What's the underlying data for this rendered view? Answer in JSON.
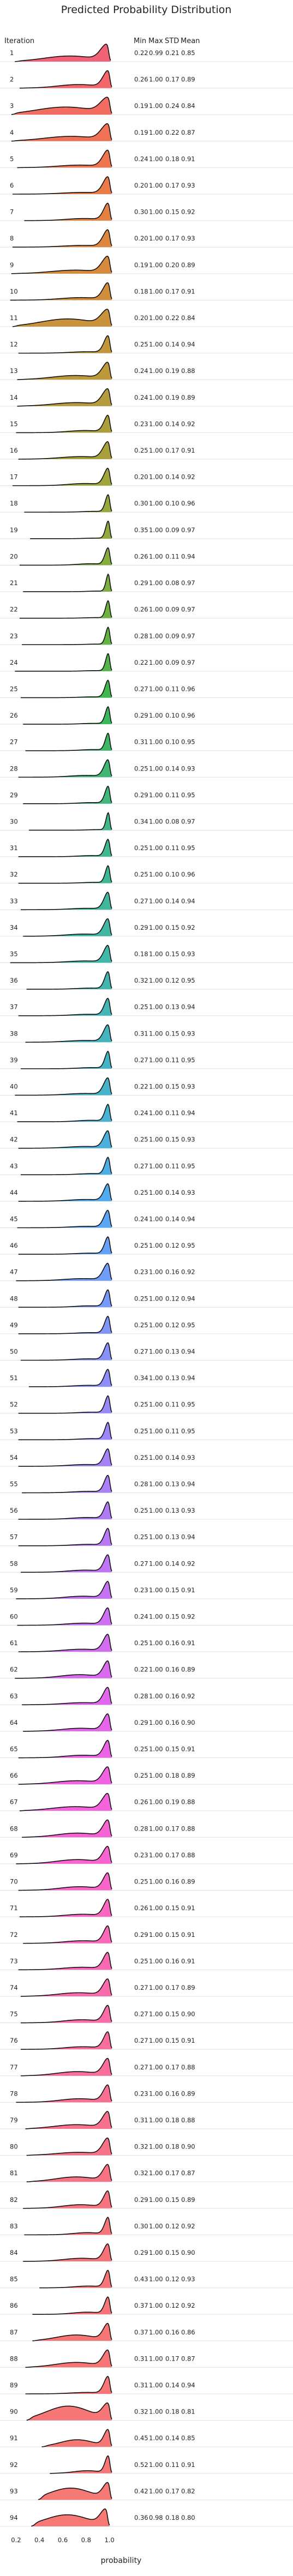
{
  "chart_data": {
    "type": "ridgeline",
    "title": "Predicted Probability Distribution",
    "row_header": "Iteration",
    "stat_headers": [
      "Min",
      "Max",
      "STD",
      "Mean"
    ],
    "xlabel": "probability",
    "x_ticks": [
      "0.2",
      "0.4",
      "0.6",
      "0.8",
      "1.0"
    ],
    "xlim": [
      0.1,
      1.1
    ],
    "rows": [
      {
        "iteration": "1",
        "min": "0.22",
        "max": "0.99",
        "std": "0.21",
        "mean": "0.85",
        "color": "#f15a6f"
      },
      {
        "iteration": "2",
        "min": "0.26",
        "max": "1.00",
        "std": "0.17",
        "mean": "0.89",
        "color": "#f25f63"
      },
      {
        "iteration": "3",
        "min": "0.19",
        "max": "1.00",
        "std": "0.24",
        "mean": "0.84",
        "color": "#f26458"
      },
      {
        "iteration": "4",
        "min": "0.19",
        "max": "1.00",
        "std": "0.22",
        "mean": "0.87",
        "color": "#f0694e"
      },
      {
        "iteration": "5",
        "min": "0.24",
        "max": "1.00",
        "std": "0.18",
        "mean": "0.91",
        "color": "#ed6e45"
      },
      {
        "iteration": "6",
        "min": "0.20",
        "max": "1.00",
        "std": "0.17",
        "mean": "0.93",
        "color": "#e8743e"
      },
      {
        "iteration": "7",
        "min": "0.30",
        "max": "1.00",
        "std": "0.15",
        "mean": "0.92",
        "color": "#e27a38"
      },
      {
        "iteration": "8",
        "min": "0.20",
        "max": "1.00",
        "std": "0.17",
        "mean": "0.93",
        "color": "#db7f35"
      },
      {
        "iteration": "9",
        "min": "0.19",
        "max": "1.00",
        "std": "0.20",
        "mean": "0.89",
        "color": "#d48433"
      },
      {
        "iteration": "10",
        "min": "0.18",
        "max": "1.00",
        "std": "0.17",
        "mean": "0.91",
        "color": "#cd8832"
      },
      {
        "iteration": "11",
        "min": "0.20",
        "max": "1.00",
        "std": "0.22",
        "mean": "0.84",
        "color": "#c68c31"
      },
      {
        "iteration": "12",
        "min": "0.25",
        "max": "1.00",
        "std": "0.14",
        "mean": "0.94",
        "color": "#bf9030"
      },
      {
        "iteration": "13",
        "min": "0.24",
        "max": "1.00",
        "std": "0.19",
        "mean": "0.88",
        "color": "#b89330"
      },
      {
        "iteration": "14",
        "min": "0.24",
        "max": "1.00",
        "std": "0.19",
        "mean": "0.89",
        "color": "#b19630"
      },
      {
        "iteration": "15",
        "min": "0.23",
        "max": "1.00",
        "std": "0.14",
        "mean": "0.92",
        "color": "#aa9930"
      },
      {
        "iteration": "16",
        "min": "0.25",
        "max": "1.00",
        "std": "0.17",
        "mean": "0.91",
        "color": "#a39c30"
      },
      {
        "iteration": "17",
        "min": "0.20",
        "max": "1.00",
        "std": "0.14",
        "mean": "0.92",
        "color": "#9b9f31"
      },
      {
        "iteration": "18",
        "min": "0.30",
        "max": "1.00",
        "std": "0.10",
        "mean": "0.96",
        "color": "#93a232"
      },
      {
        "iteration": "19",
        "min": "0.35",
        "max": "1.00",
        "std": "0.09",
        "mean": "0.97",
        "color": "#8aa533"
      },
      {
        "iteration": "20",
        "min": "0.26",
        "max": "1.00",
        "std": "0.11",
        "mean": "0.94",
        "color": "#80a834"
      },
      {
        "iteration": "21",
        "min": "0.29",
        "max": "1.00",
        "std": "0.08",
        "mean": "0.97",
        "color": "#75aa36"
      },
      {
        "iteration": "22",
        "min": "0.26",
        "max": "1.00",
        "std": "0.09",
        "mean": "0.97",
        "color": "#69ad38"
      },
      {
        "iteration": "23",
        "min": "0.28",
        "max": "1.00",
        "std": "0.09",
        "mean": "0.97",
        "color": "#5baf3b"
      },
      {
        "iteration": "24",
        "min": "0.22",
        "max": "1.00",
        "std": "0.09",
        "mean": "0.97",
        "color": "#4bb13f"
      },
      {
        "iteration": "25",
        "min": "0.27",
        "max": "1.00",
        "std": "0.11",
        "mean": "0.96",
        "color": "#38b245"
      },
      {
        "iteration": "26",
        "min": "0.29",
        "max": "1.00",
        "std": "0.10",
        "mean": "0.96",
        "color": "#33b353"
      },
      {
        "iteration": "27",
        "min": "0.31",
        "max": "1.00",
        "std": "0.10",
        "mean": "0.95",
        "color": "#34b35f"
      },
      {
        "iteration": "28",
        "min": "0.25",
        "max": "1.00",
        "std": "0.14",
        "mean": "0.93",
        "color": "#35b36a"
      },
      {
        "iteration": "29",
        "min": "0.29",
        "max": "1.00",
        "std": "0.11",
        "mean": "0.95",
        "color": "#36b374"
      },
      {
        "iteration": "30",
        "min": "0.34",
        "max": "1.00",
        "std": "0.08",
        "mean": "0.97",
        "color": "#36b37d"
      },
      {
        "iteration": "31",
        "min": "0.25",
        "max": "1.00",
        "std": "0.11",
        "mean": "0.95",
        "color": "#36b386"
      },
      {
        "iteration": "32",
        "min": "0.25",
        "max": "1.00",
        "std": "0.10",
        "mean": "0.96",
        "color": "#36b38e"
      },
      {
        "iteration": "33",
        "min": "0.27",
        "max": "1.00",
        "std": "0.14",
        "mean": "0.94",
        "color": "#36b395"
      },
      {
        "iteration": "34",
        "min": "0.29",
        "max": "1.00",
        "std": "0.15",
        "mean": "0.92",
        "color": "#37b39c"
      },
      {
        "iteration": "35",
        "min": "0.18",
        "max": "1.00",
        "std": "0.15",
        "mean": "0.93",
        "color": "#37b3a3"
      },
      {
        "iteration": "36",
        "min": "0.32",
        "max": "1.00",
        "std": "0.12",
        "mean": "0.95",
        "color": "#38b2aa"
      },
      {
        "iteration": "37",
        "min": "0.25",
        "max": "1.00",
        "std": "0.13",
        "mean": "0.94",
        "color": "#39b2b1"
      },
      {
        "iteration": "38",
        "min": "0.31",
        "max": "1.00",
        "std": "0.15",
        "mean": "0.93",
        "color": "#3ab1b8"
      },
      {
        "iteration": "39",
        "min": "0.27",
        "max": "1.00",
        "std": "0.11",
        "mean": "0.95",
        "color": "#3bb0bf"
      },
      {
        "iteration": "40",
        "min": "0.22",
        "max": "1.00",
        "std": "0.15",
        "mean": "0.93",
        "color": "#3dafc7"
      },
      {
        "iteration": "41",
        "min": "0.24",
        "max": "1.00",
        "std": "0.11",
        "mean": "0.94",
        "color": "#3faed0"
      },
      {
        "iteration": "42",
        "min": "0.25",
        "max": "1.00",
        "std": "0.15",
        "mean": "0.93",
        "color": "#42acd9"
      },
      {
        "iteration": "43",
        "min": "0.27",
        "max": "1.00",
        "std": "0.11",
        "mean": "0.95",
        "color": "#45a9e3"
      },
      {
        "iteration": "44",
        "min": "0.25",
        "max": "1.00",
        "std": "0.14",
        "mean": "0.93",
        "color": "#4aa6ee"
      },
      {
        "iteration": "45",
        "min": "0.24",
        "max": "1.00",
        "std": "0.14",
        "mean": "0.94",
        "color": "#52a2f6"
      },
      {
        "iteration": "46",
        "min": "0.25",
        "max": "1.00",
        "std": "0.12",
        "mean": "0.95",
        "color": "#5d9df7"
      },
      {
        "iteration": "47",
        "min": "0.23",
        "max": "1.00",
        "std": "0.16",
        "mean": "0.92",
        "color": "#6798f7"
      },
      {
        "iteration": "48",
        "min": "0.25",
        "max": "1.00",
        "std": "0.12",
        "mean": "0.94",
        "color": "#7093f7"
      },
      {
        "iteration": "49",
        "min": "0.25",
        "max": "1.00",
        "std": "0.12",
        "mean": "0.95",
        "color": "#798ff7"
      },
      {
        "iteration": "50",
        "min": "0.27",
        "max": "1.00",
        "std": "0.13",
        "mean": "0.94",
        "color": "#818bf7"
      },
      {
        "iteration": "51",
        "min": "0.34",
        "max": "1.00",
        "std": "0.13",
        "mean": "0.94",
        "color": "#8987f7"
      },
      {
        "iteration": "52",
        "min": "0.25",
        "max": "1.00",
        "std": "0.11",
        "mean": "0.95",
        "color": "#9183f7"
      },
      {
        "iteration": "53",
        "min": "0.25",
        "max": "1.00",
        "std": "0.11",
        "mean": "0.95",
        "color": "#987ff7"
      },
      {
        "iteration": "54",
        "min": "0.25",
        "max": "1.00",
        "std": "0.14",
        "mean": "0.93",
        "color": "#a07bf6"
      },
      {
        "iteration": "55",
        "min": "0.28",
        "max": "1.00",
        "std": "0.13",
        "mean": "0.94",
        "color": "#a778f6"
      },
      {
        "iteration": "56",
        "min": "0.25",
        "max": "1.00",
        "std": "0.13",
        "mean": "0.93",
        "color": "#ae74f5"
      },
      {
        "iteration": "57",
        "min": "0.25",
        "max": "1.00",
        "std": "0.13",
        "mean": "0.94",
        "color": "#b571f4"
      },
      {
        "iteration": "58",
        "min": "0.27",
        "max": "1.00",
        "std": "0.14",
        "mean": "0.92",
        "color": "#bc6ef3"
      },
      {
        "iteration": "59",
        "min": "0.23",
        "max": "1.00",
        "std": "0.15",
        "mean": "0.91",
        "color": "#c36bf2"
      },
      {
        "iteration": "60",
        "min": "0.24",
        "max": "1.00",
        "std": "0.15",
        "mean": "0.92",
        "color": "#ca68f1"
      },
      {
        "iteration": "61",
        "min": "0.25",
        "max": "1.00",
        "std": "0.16",
        "mean": "0.91",
        "color": "#d165ef"
      },
      {
        "iteration": "62",
        "min": "0.22",
        "max": "1.00",
        "std": "0.16",
        "mean": "0.89",
        "color": "#d862ed"
      },
      {
        "iteration": "63",
        "min": "0.28",
        "max": "1.00",
        "std": "0.16",
        "mean": "0.92",
        "color": "#df60eb"
      },
      {
        "iteration": "64",
        "min": "0.29",
        "max": "1.00",
        "std": "0.16",
        "mean": "0.90",
        "color": "#e55ee8"
      },
      {
        "iteration": "65",
        "min": "0.25",
        "max": "1.00",
        "std": "0.15",
        "mean": "0.91",
        "color": "#eb5ce4"
      },
      {
        "iteration": "66",
        "min": "0.25",
        "max": "1.00",
        "std": "0.18",
        "mean": "0.89",
        "color": "#f05bdf"
      },
      {
        "iteration": "67",
        "min": "0.26",
        "max": "1.00",
        "std": "0.19",
        "mean": "0.88",
        "color": "#f45bd9"
      },
      {
        "iteration": "68",
        "min": "0.28",
        "max": "1.00",
        "std": "0.17",
        "mean": "0.88",
        "color": "#f65cd2"
      },
      {
        "iteration": "69",
        "min": "0.23",
        "max": "1.00",
        "std": "0.17",
        "mean": "0.88",
        "color": "#f85dcb"
      },
      {
        "iteration": "70",
        "min": "0.25",
        "max": "1.00",
        "std": "0.16",
        "mean": "0.89",
        "color": "#f95ec4"
      },
      {
        "iteration": "71",
        "min": "0.26",
        "max": "1.00",
        "std": "0.15",
        "mean": "0.91",
        "color": "#fa5fbd"
      },
      {
        "iteration": "72",
        "min": "0.29",
        "max": "1.00",
        "std": "0.15",
        "mean": "0.91",
        "color": "#fa61b6"
      },
      {
        "iteration": "73",
        "min": "0.25",
        "max": "1.00",
        "std": "0.16",
        "mean": "0.91",
        "color": "#fa62af"
      },
      {
        "iteration": "74",
        "min": "0.27",
        "max": "1.00",
        "std": "0.17",
        "mean": "0.89",
        "color": "#fa63a8"
      },
      {
        "iteration": "75",
        "min": "0.27",
        "max": "1.00",
        "std": "0.15",
        "mean": "0.90",
        "color": "#fa65a1"
      },
      {
        "iteration": "76",
        "min": "0.27",
        "max": "1.00",
        "std": "0.15",
        "mean": "0.91",
        "color": "#f9669a"
      },
      {
        "iteration": "77",
        "min": "0.27",
        "max": "1.00",
        "std": "0.17",
        "mean": "0.88",
        "color": "#f96794"
      },
      {
        "iteration": "78",
        "min": "0.23",
        "max": "1.00",
        "std": "0.16",
        "mean": "0.89",
        "color": "#f8688e"
      },
      {
        "iteration": "79",
        "min": "0.31",
        "max": "1.00",
        "std": "0.18",
        "mean": "0.88",
        "color": "#f86988"
      },
      {
        "iteration": "80",
        "min": "0.32",
        "max": "1.00",
        "std": "0.18",
        "mean": "0.90",
        "color": "#f76a82"
      },
      {
        "iteration": "81",
        "min": "0.32",
        "max": "1.00",
        "std": "0.17",
        "mean": "0.87",
        "color": "#f76b7d"
      },
      {
        "iteration": "82",
        "min": "0.29",
        "max": "1.00",
        "std": "0.15",
        "mean": "0.89",
        "color": "#f66c78"
      },
      {
        "iteration": "83",
        "min": "0.30",
        "max": "1.00",
        "std": "0.12",
        "mean": "0.92",
        "color": "#f66d74"
      },
      {
        "iteration": "84",
        "min": "0.29",
        "max": "1.00",
        "std": "0.15",
        "mean": "0.90",
        "color": "#f66d71"
      },
      {
        "iteration": "85",
        "min": "0.43",
        "max": "1.00",
        "std": "0.12",
        "mean": "0.93",
        "color": "#f56e70"
      },
      {
        "iteration": "86",
        "min": "0.37",
        "max": "1.00",
        "std": "0.12",
        "mean": "0.92",
        "color": "#f56e6f"
      },
      {
        "iteration": "87",
        "min": "0.37",
        "max": "1.00",
        "std": "0.16",
        "mean": "0.86",
        "color": "#f56f6f"
      },
      {
        "iteration": "88",
        "min": "0.31",
        "max": "1.00",
        "std": "0.17",
        "mean": "0.87",
        "color": "#f56f6f"
      },
      {
        "iteration": "89",
        "min": "0.31",
        "max": "1.00",
        "std": "0.14",
        "mean": "0.94",
        "color": "#f5706f"
      },
      {
        "iteration": "90",
        "min": "0.32",
        "max": "1.00",
        "std": "0.18",
        "mean": "0.81",
        "color": "#f5706f"
      },
      {
        "iteration": "91",
        "min": "0.45",
        "max": "1.00",
        "std": "0.14",
        "mean": "0.85",
        "color": "#f5716f"
      },
      {
        "iteration": "92",
        "min": "0.52",
        "max": "1.00",
        "std": "0.11",
        "mean": "0.91",
        "color": "#f5716f"
      },
      {
        "iteration": "93",
        "min": "0.42",
        "max": "1.00",
        "std": "0.17",
        "mean": "0.82",
        "color": "#f5726f"
      },
      {
        "iteration": "94",
        "min": "0.36",
        "max": "0.98",
        "std": "0.18",
        "mean": "0.80",
        "color": "#f5726f"
      }
    ]
  }
}
